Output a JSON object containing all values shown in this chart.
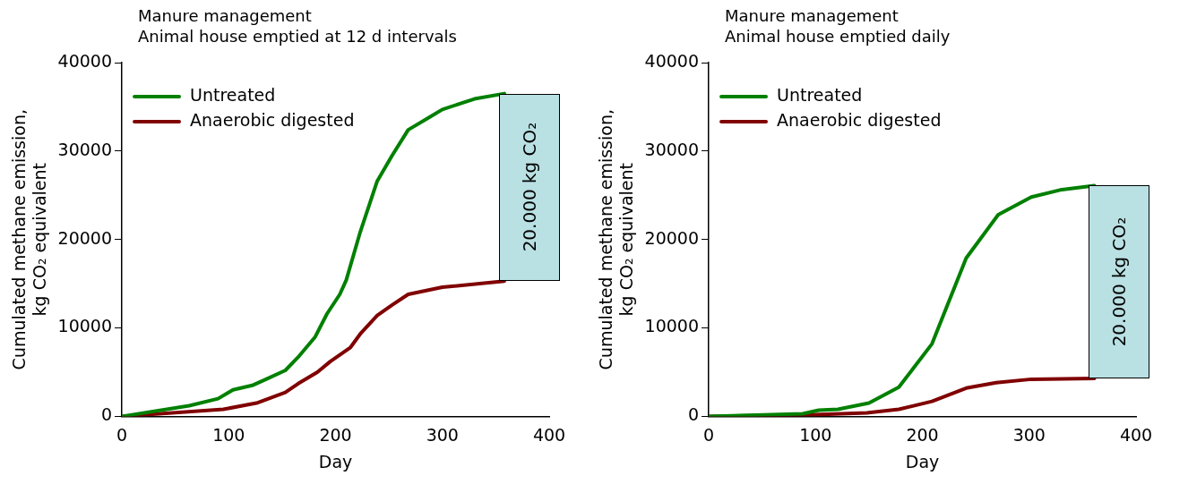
{
  "chart_data": [
    {
      "type": "line",
      "title": "Manure management",
      "subtitle": "Animal house emptied at 12 d intervals",
      "xlabel": "Day",
      "ylabel": "Cumulated methane emission, kg CO₂ equivalent",
      "xlim": [
        0,
        400
      ],
      "xticks": [
        0,
        100,
        200,
        300,
        400
      ],
      "ylim": [
        0,
        40000
      ],
      "yticks": [
        0,
        10000,
        20000,
        30000,
        40000
      ],
      "grid": false,
      "legend": "top left",
      "marker": "none",
      "line_style": "solid",
      "annotations": [
        "20.000 kg CO₂"
      ],
      "series": [
        {
          "name": "Untreated",
          "color": "#008000",
          "x": [
            0,
            63,
            90,
            104,
            122,
            135,
            153,
            165,
            181,
            192,
            204,
            210,
            223,
            239,
            253,
            268,
            289,
            300,
            330,
            358
          ],
          "values": [
            0,
            1200,
            2000,
            3000,
            3500,
            4200,
            5200,
            6700,
            9000,
            11600,
            13800,
            15400,
            20800,
            26600,
            29500,
            32400,
            33900,
            34700,
            35900,
            36500
          ]
        },
        {
          "name": "Anaerobic digested",
          "color": "#800000",
          "x": [
            0,
            95,
            126,
            153,
            165,
            183,
            195,
            214,
            223,
            239,
            253,
            268,
            300,
            358
          ],
          "values": [
            0,
            800,
            1500,
            2700,
            3700,
            5000,
            6200,
            7800,
            9300,
            11400,
            12600,
            13800,
            14600,
            15300
          ]
        }
      ]
    },
    {
      "type": "line",
      "title": "Manure management",
      "subtitle": "Animal house emptied daily",
      "xlabel": "Day",
      "ylabel": "Cumulated methane emission, kg CO₂ equivalent",
      "xlim": [
        0,
        400
      ],
      "xticks": [
        0,
        100,
        200,
        300,
        400
      ],
      "ylim": [
        0,
        40000
      ],
      "yticks": [
        0,
        10000,
        20000,
        30000,
        40000
      ],
      "grid": false,
      "legend": "top left",
      "marker": "none",
      "line_style": "solid",
      "annotations": [
        "20.000 kg CO₂"
      ],
      "series": [
        {
          "name": "Untreated",
          "color": "#008000",
          "x": [
            0,
            88,
            103,
            121,
            150,
            178,
            209,
            241,
            271,
            302,
            329,
            361
          ],
          "values": [
            0,
            300,
            700,
            800,
            1500,
            3300,
            8200,
            17900,
            22800,
            24800,
            25600,
            26100
          ]
        },
        {
          "name": "Anaerobic digested",
          "color": "#800000",
          "x": [
            0,
            100,
            148,
            178,
            209,
            241,
            269,
            302,
            361
          ],
          "values": [
            0,
            200,
            400,
            800,
            1700,
            3200,
            3800,
            4200,
            4300
          ]
        }
      ]
    }
  ]
}
